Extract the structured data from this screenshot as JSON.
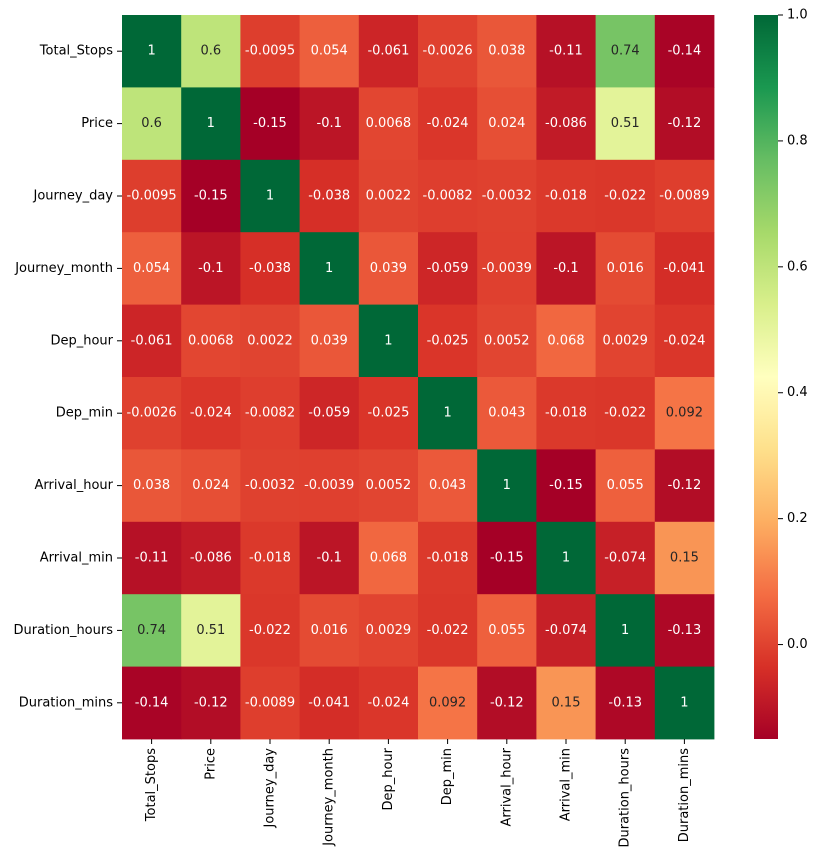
{
  "chart_data": {
    "type": "heatmap",
    "title": "",
    "xlabel": "",
    "ylabel": "",
    "variables": [
      "Total_Stops",
      "Price",
      "Journey_day",
      "Journey_month",
      "Dep_hour",
      "Dep_min",
      "Arrival_hour",
      "Arrival_min",
      "Duration_hours",
      "Duration_mins"
    ],
    "matrix": [
      [
        1,
        0.6,
        -0.0095,
        0.054,
        -0.061,
        -0.0026,
        0.038,
        -0.11,
        0.74,
        -0.14
      ],
      [
        0.6,
        1,
        -0.15,
        -0.1,
        0.0068,
        -0.024,
        0.024,
        -0.086,
        0.51,
        -0.12
      ],
      [
        -0.0095,
        -0.15,
        1,
        -0.038,
        0.0022,
        -0.0082,
        -0.0032,
        -0.018,
        -0.022,
        -0.0089
      ],
      [
        0.054,
        -0.1,
        -0.038,
        1,
        0.039,
        -0.059,
        -0.0039,
        -0.1,
        0.016,
        -0.041
      ],
      [
        -0.061,
        0.0068,
        0.0022,
        0.039,
        1,
        -0.025,
        0.0052,
        0.068,
        0.0029,
        -0.024
      ],
      [
        -0.0026,
        -0.024,
        -0.0082,
        -0.059,
        -0.025,
        1,
        0.043,
        -0.018,
        -0.022,
        0.092
      ],
      [
        0.038,
        0.024,
        -0.0032,
        -0.0039,
        0.0052,
        0.043,
        1,
        -0.15,
        0.055,
        -0.12
      ],
      [
        -0.11,
        -0.086,
        -0.018,
        -0.1,
        0.068,
        -0.018,
        -0.15,
        1,
        -0.074,
        0.15
      ],
      [
        0.74,
        0.51,
        -0.022,
        0.016,
        0.0029,
        -0.022,
        0.055,
        -0.074,
        1,
        -0.13
      ],
      [
        -0.14,
        -0.12,
        -0.0089,
        -0.041,
        -0.024,
        0.092,
        -0.12,
        0.15,
        -0.13,
        1
      ]
    ],
    "annotations": [
      [
        "1",
        "0.6",
        "-0.0095",
        "0.054",
        "-0.061",
        "-0.0026",
        "0.038",
        "-0.11",
        "0.74",
        "-0.14"
      ],
      [
        "0.6",
        "1",
        "-0.15",
        "-0.1",
        "0.0068",
        "-0.024",
        "0.024",
        "-0.086",
        "0.51",
        "-0.12"
      ],
      [
        "-0.0095",
        "-0.15",
        "1",
        "-0.038",
        "0.0022",
        "-0.0082",
        "-0.0032",
        "-0.018",
        "-0.022",
        "-0.0089"
      ],
      [
        "0.054",
        "-0.1",
        "-0.038",
        "1",
        "0.039",
        "-0.059",
        "-0.0039",
        "-0.1",
        "0.016",
        "-0.041"
      ],
      [
        "-0.061",
        "0.0068",
        "0.0022",
        "0.039",
        "1",
        "-0.025",
        "0.0052",
        "0.068",
        "0.0029",
        "-0.024"
      ],
      [
        "-0.0026",
        "-0.024",
        "-0.0082",
        "-0.059",
        "-0.025",
        "1",
        "0.043",
        "-0.018",
        "-0.022",
        "0.092"
      ],
      [
        "0.038",
        "0.024",
        "-0.0032",
        "-0.0039",
        "0.0052",
        "0.043",
        "1",
        "-0.15",
        "0.055",
        "-0.12"
      ],
      [
        "-0.11",
        "-0.086",
        "-0.018",
        "-0.1",
        "0.068",
        "-0.018",
        "-0.15",
        "1",
        "-0.074",
        "0.15"
      ],
      [
        "0.74",
        "0.51",
        "-0.022",
        "0.016",
        "0.0029",
        "-0.022",
        "0.055",
        "-0.074",
        "1",
        "-0.13"
      ],
      [
        "-0.14",
        "-0.12",
        "-0.0089",
        "-0.041",
        "-0.024",
        "0.092",
        "-0.12",
        "0.15",
        "-0.13",
        "1"
      ]
    ],
    "colormap": {
      "name": "RdYlGn",
      "vmin": -0.15,
      "vmax": 1.0,
      "stops": [
        "#a50026",
        "#d73027",
        "#f46d43",
        "#fdae61",
        "#fee08b",
        "#ffffbf",
        "#d9ef8b",
        "#a6d96a",
        "#66bd63",
        "#1a9850",
        "#006837"
      ]
    },
    "colorbar": {
      "position": "right",
      "ticks": [
        0.0,
        0.2,
        0.4,
        0.6,
        0.8,
        1.0
      ],
      "tick_labels": [
        "0.0",
        "0.2",
        "0.4",
        "0.6",
        "0.8",
        "1.0"
      ]
    },
    "annotation_text_colors": {
      "dark_cell": "#ffffff",
      "light_cell": "#262626"
    },
    "grid": false,
    "legend": "none"
  }
}
